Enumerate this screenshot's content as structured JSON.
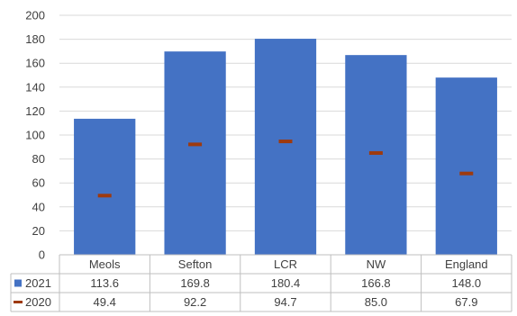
{
  "chart_data": {
    "type": "bar",
    "title": "",
    "xlabel": "",
    "ylabel": "",
    "ylim": [
      0,
      200
    ],
    "yticks": [
      0,
      20,
      40,
      60,
      80,
      100,
      120,
      140,
      160,
      180,
      200
    ],
    "grid": true,
    "categories": [
      "Meols",
      "Sefton",
      "LCR",
      "NW",
      "England"
    ],
    "series": [
      {
        "name": "2021",
        "mark": "bar",
        "color": "#4472C4",
        "values": [
          113.6,
          169.8,
          180.4,
          166.8,
          148.0
        ],
        "labels": [
          "113.6",
          "169.8",
          "180.4",
          "166.8",
          "148.0"
        ]
      },
      {
        "name": "2020",
        "mark": "dash",
        "color": "#9E3A0E",
        "values": [
          49.4,
          92.2,
          94.7,
          85.0,
          67.9
        ],
        "labels": [
          "49.4",
          "92.2",
          "94.7",
          "85.0",
          "67.9"
        ]
      }
    ],
    "data_table": true
  }
}
